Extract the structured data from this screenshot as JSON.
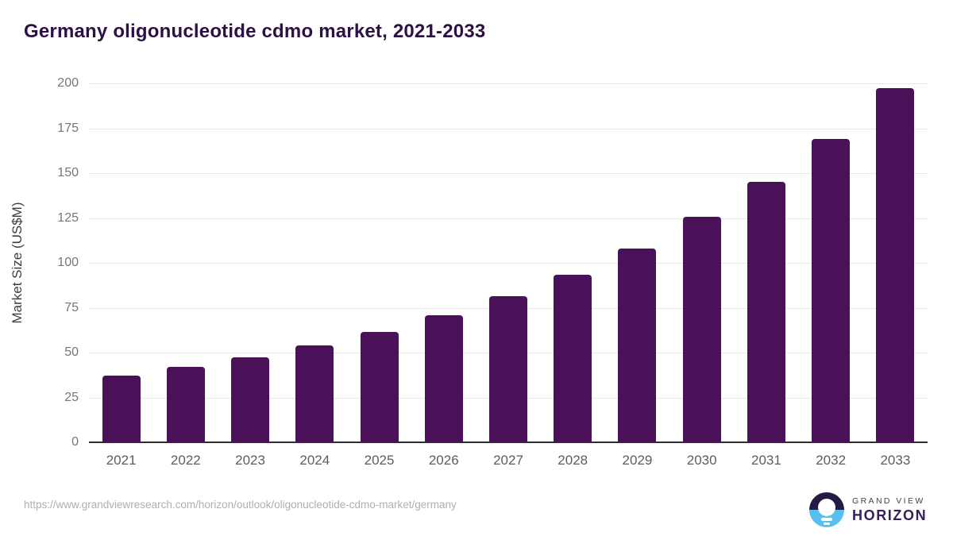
{
  "chart_data": {
    "type": "bar",
    "title": "Germany oligonucleotide cdmo market, 2021-2033",
    "xlabel": "",
    "ylabel": "Market Size (US$M)",
    "categories": [
      "2021",
      "2022",
      "2023",
      "2024",
      "2025",
      "2026",
      "2027",
      "2028",
      "2029",
      "2030",
      "2031",
      "2032",
      "2033"
    ],
    "values": [
      37,
      42,
      47.5,
      54,
      61.5,
      71,
      81.5,
      93.5,
      108,
      125.5,
      145,
      169,
      197.5
    ],
    "ylim": [
      0,
      200
    ],
    "y_ticks": [
      0,
      25,
      50,
      75,
      100,
      125,
      150,
      175,
      200
    ],
    "grid": "horizontal",
    "legend": "none"
  },
  "footer": {
    "source_url": "https://www.grandviewresearch.com/horizon/outlook/oligonucleotide-cdmo-market/germany",
    "logo": {
      "top_text": "GRAND VIEW",
      "bottom_text": "HORIZON"
    }
  },
  "colors": {
    "bar": "#4a1158",
    "title": "#2c1145",
    "y_axis_title": "#3d3d3d",
    "y_tick": "#767676",
    "x_tick": "#5d5d5d",
    "gridline": "#e8e8e8",
    "axis_line": "#2f2f2f",
    "url_text": "#b0aeae",
    "logo_dark": "#251a43",
    "logo_blue": "#57c0ef",
    "logo_text_gray": "#474052",
    "logo_text_purple": "#362057"
  }
}
